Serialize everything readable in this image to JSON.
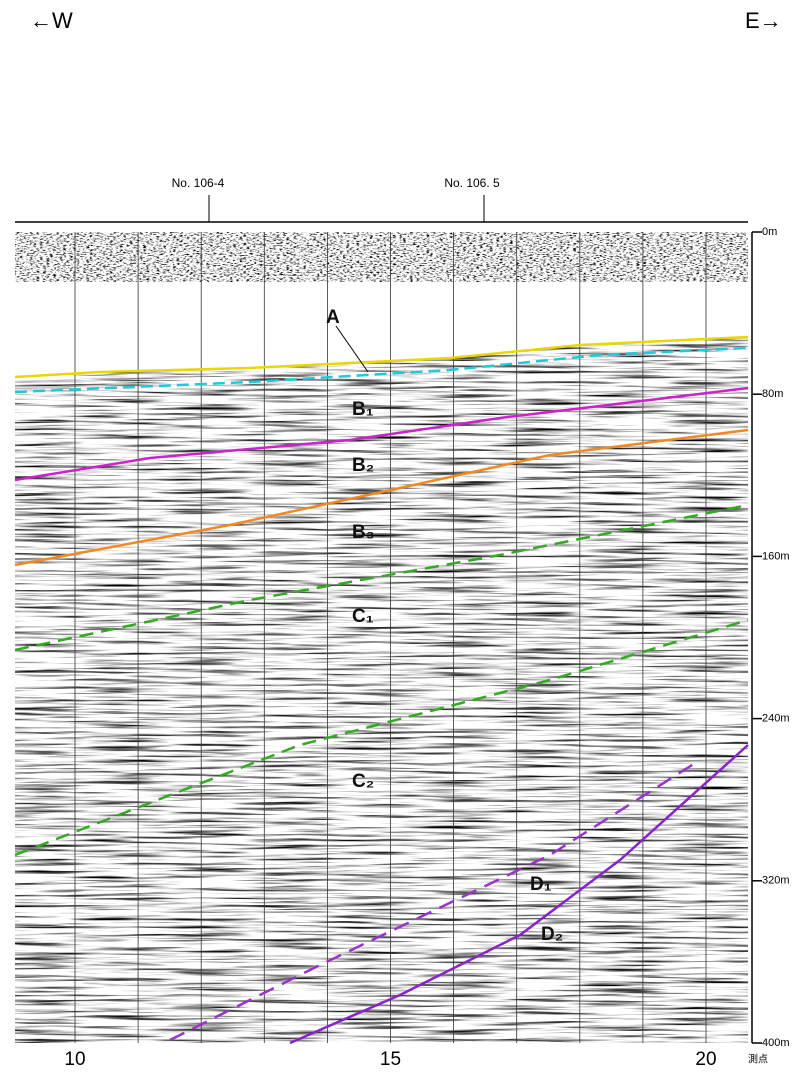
{
  "direction_labels": {
    "west": "←W",
    "east": "E→"
  },
  "line_markers": [
    "No. 106-4",
    "No. 106. 5"
  ],
  "horizon_labels": {
    "a": "A",
    "b1": "B₁",
    "b2": "B₂",
    "b3": "B₃",
    "c1": "C₁",
    "c2": "C₂",
    "d1": "D₁",
    "d2": "D₂"
  },
  "depth_axis": {
    "ticks": [
      {
        "value": 0,
        "label": "0m"
      },
      {
        "value": 80,
        "label": "80m"
      },
      {
        "value": 160,
        "label": "160m"
      },
      {
        "value": 240,
        "label": "240m"
      },
      {
        "value": 320,
        "label": "320m"
      },
      {
        "value": 400,
        "label": "400m"
      }
    ]
  },
  "station_axis": {
    "ticks": [
      10,
      15,
      20
    ],
    "label": "測点"
  }
}
